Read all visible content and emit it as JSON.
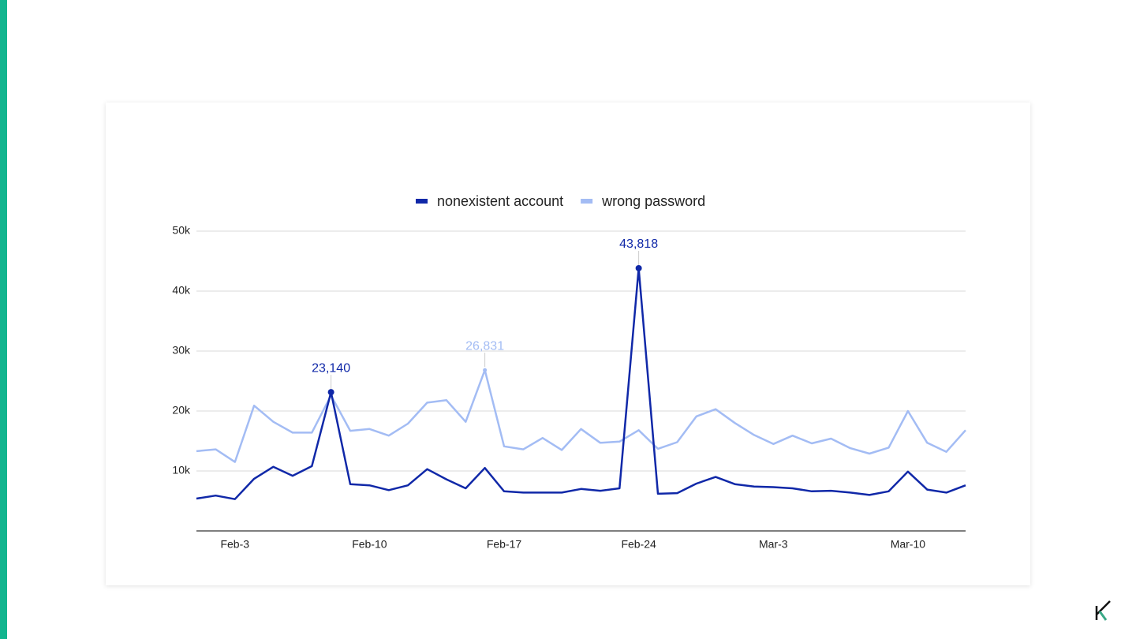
{
  "chart_data": {
    "type": "line",
    "categories": [
      null,
      null,
      "Feb-3",
      null,
      null,
      null,
      null,
      null,
      null,
      "Feb-10",
      null,
      null,
      null,
      null,
      null,
      null,
      "Feb-17",
      null,
      null,
      null,
      null,
      null,
      null,
      "Feb-24",
      null,
      null,
      null,
      null,
      null,
      null,
      "Mar-3",
      null,
      null,
      null,
      null,
      null,
      null,
      "Mar-10",
      null,
      null,
      null
    ],
    "series": [
      {
        "name": "nonexistent account",
        "color": "#1028a8",
        "values": [
          5400,
          5900,
          5300,
          8700,
          10700,
          9200,
          10800,
          23140,
          7800,
          7600,
          6800,
          7600,
          10300,
          8600,
          7100,
          10500,
          6600,
          6400,
          6400,
          6400,
          7000,
          6700,
          7100,
          43818,
          6200,
          6300,
          7900,
          9000,
          7800,
          7400,
          7300,
          7100,
          6600,
          6700,
          6400,
          6000,
          6600,
          9900,
          6900,
          6400,
          7600
        ],
        "value_labels": [
          null,
          null,
          null,
          null,
          null,
          null,
          null,
          "23,140",
          null,
          null,
          null,
          null,
          null,
          null,
          null,
          null,
          null,
          null,
          null,
          null,
          null,
          null,
          null,
          "43,818",
          null,
          null,
          null,
          null,
          null,
          null,
          null,
          null,
          null,
          null,
          null,
          null,
          null,
          null,
          null,
          null,
          null
        ]
      },
      {
        "name": "wrong password",
        "color": "#a3bcf4",
        "values": [
          13300,
          13600,
          11500,
          20900,
          18200,
          16400,
          16400,
          22600,
          16700,
          17000,
          15900,
          17900,
          21400,
          21800,
          18200,
          26831,
          14100,
          13600,
          15500,
          13500,
          17000,
          14700,
          14900,
          16800,
          13700,
          14800,
          19100,
          20300,
          18000,
          16000,
          14500,
          15900,
          14600,
          15400,
          13800,
          12900,
          13900,
          20000,
          14700,
          13200,
          16800
        ],
        "value_labels": [
          null,
          null,
          null,
          null,
          null,
          null,
          null,
          null,
          null,
          null,
          null,
          null,
          null,
          null,
          null,
          "26,831",
          null,
          null,
          null,
          null,
          null,
          null,
          null,
          null,
          null,
          null,
          null,
          null,
          null,
          null,
          null,
          null,
          null,
          null,
          null,
          null,
          null,
          null,
          null,
          null,
          null
        ]
      }
    ],
    "ylim": [
      0,
      50000
    ],
    "yticks": [
      {
        "value": 10000,
        "label": "10k"
      },
      {
        "value": 20000,
        "label": "20k"
      },
      {
        "value": 30000,
        "label": "30k"
      },
      {
        "value": 40000,
        "label": "40k"
      },
      {
        "value": 50000,
        "label": "50k"
      }
    ],
    "grid": true,
    "legend": "top"
  }
}
